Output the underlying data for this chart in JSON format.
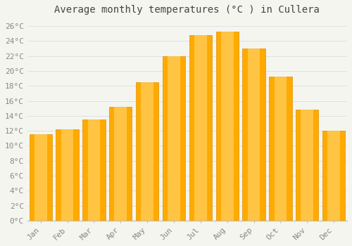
{
  "title": "Average monthly temperatures (°C ) in Cullera",
  "months": [
    "Jan",
    "Feb",
    "Mar",
    "Apr",
    "May",
    "Jun",
    "Jul",
    "Aug",
    "Sep",
    "Oct",
    "Nov",
    "Dec"
  ],
  "temperatures": [
    11.5,
    12.2,
    13.5,
    15.2,
    18.5,
    22.0,
    24.8,
    25.2,
    23.0,
    19.2,
    14.8,
    12.0
  ],
  "bar_color_light": "#FFD060",
  "bar_color_main": "#FFAA00",
  "bar_edge_color": "#E09000",
  "background_color": "#F5F5F0",
  "grid_color": "#DDDDDD",
  "ylim": [
    0,
    27
  ],
  "yticks": [
    0,
    2,
    4,
    6,
    8,
    10,
    12,
    14,
    16,
    18,
    20,
    22,
    24,
    26
  ],
  "title_fontsize": 10,
  "tick_fontsize": 8,
  "title_color": "#444444",
  "tick_color": "#888888",
  "font_family": "monospace",
  "bar_width": 0.85
}
